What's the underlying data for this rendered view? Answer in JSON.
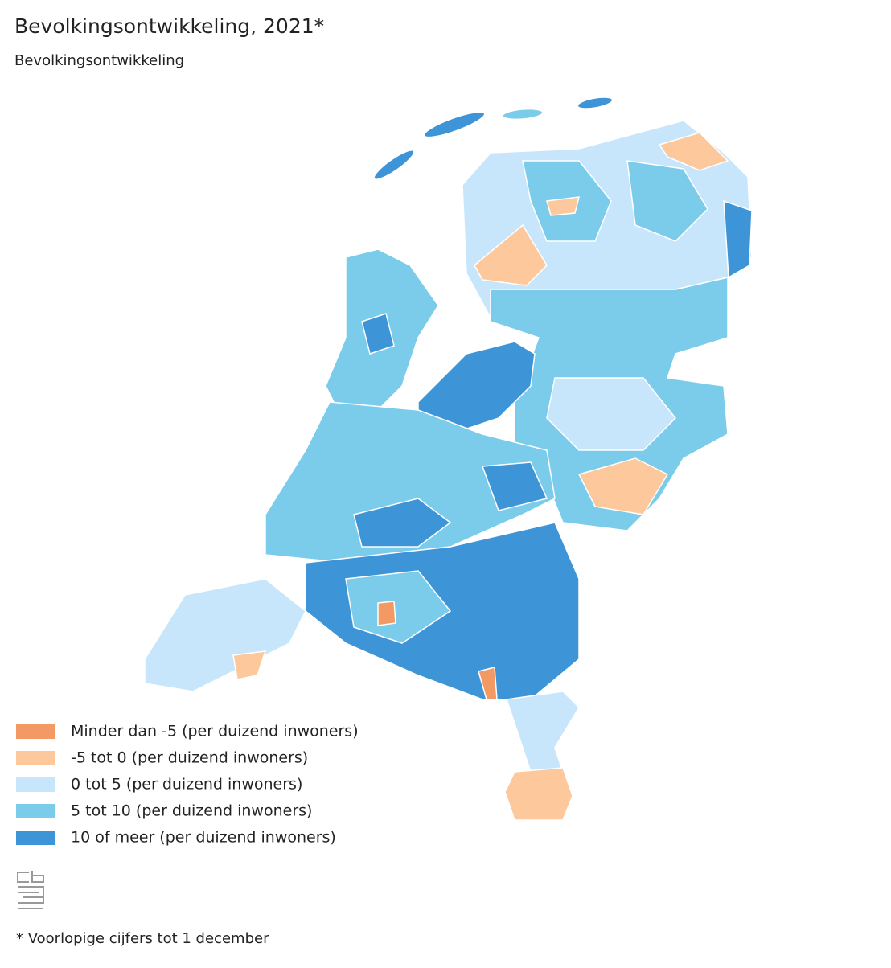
{
  "header": {
    "title": "Bevolkingsontwikkeling, 2021*",
    "subtitle": "Bevolkingsontwikkeling"
  },
  "legend": {
    "items": [
      {
        "label": "Minder dan -5 (per duizend inwoners)",
        "color": "#f39a64"
      },
      {
        "label": "-5 tot 0 (per duizend inwoners)",
        "color": "#fdc89c"
      },
      {
        "label": "0 tot 5 (per duizend inwoners)",
        "color": "#c8e6fb"
      },
      {
        "label": "5 tot 10 (per duizend inwoners)",
        "color": "#7accea"
      },
      {
        "label": "10 of meer (per duizend inwoners)",
        "color": "#3d94d7"
      }
    ]
  },
  "footnote": "* Voorlopige cijfers tot 1 december"
}
